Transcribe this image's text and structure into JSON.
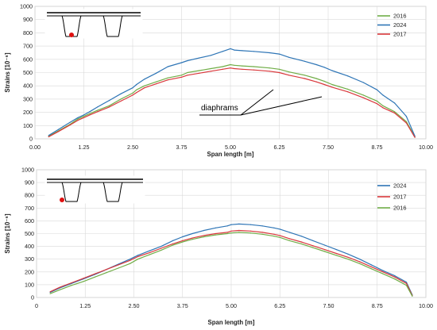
{
  "chart_data": [
    {
      "type": "line",
      "xlabel": "Span length [m]",
      "ylabel": "Strains [10⁻⁶]",
      "xlim": [
        0,
        10
      ],
      "ylim": [
        0,
        1000
      ],
      "xticks": [
        "0.00",
        "1.25",
        "2.50",
        "3.75",
        "5.00",
        "6.25",
        "7.50",
        "8.75",
        "10.00"
      ],
      "yticks": [
        "0",
        "100",
        "200",
        "300",
        "400",
        "500",
        "600",
        "700",
        "800",
        "900",
        "1000"
      ],
      "grid": true,
      "legend_position": "top-right",
      "legend_order": [
        "2016",
        "2024",
        "2017"
      ],
      "annotation": "diaphrams",
      "inset": "cross-section-sketch-with-red-sensor-point",
      "series": [
        {
          "name": "2016",
          "color": "#70ad47",
          "x": [
            0.35,
            0.6,
            0.9,
            1.1,
            1.25,
            1.4,
            1.6,
            1.9,
            2.2,
            2.5,
            2.6,
            2.8,
            3.1,
            3.4,
            3.75,
            3.9,
            4.2,
            4.5,
            4.8,
            5.0,
            5.1,
            5.3,
            5.6,
            6.0,
            6.25,
            6.5,
            6.9,
            7.2,
            7.4,
            7.6,
            8.0,
            8.4,
            8.75,
            8.9,
            9.2,
            9.5,
            9.72
          ],
          "y": [
            20,
            60,
            110,
            150,
            170,
            190,
            215,
            250,
            300,
            345,
            370,
            400,
            430,
            460,
            480,
            500,
            515,
            530,
            545,
            560,
            555,
            550,
            545,
            535,
            525,
            505,
            480,
            455,
            435,
            410,
            375,
            330,
            285,
            250,
            205,
            130,
            15
          ]
        },
        {
          "name": "2024",
          "color": "#2e75b6",
          "x": [
            0.35,
            0.6,
            0.9,
            1.1,
            1.25,
            1.4,
            1.6,
            1.9,
            2.2,
            2.5,
            2.6,
            2.8,
            3.1,
            3.4,
            3.75,
            3.9,
            4.2,
            4.5,
            4.8,
            5.0,
            5.1,
            5.3,
            5.6,
            6.0,
            6.25,
            6.5,
            6.9,
            7.2,
            7.4,
            7.6,
            8.0,
            8.4,
            8.75,
            8.9,
            9.2,
            9.5,
            9.72
          ],
          "y": [
            25,
            70,
            125,
            160,
            180,
            205,
            240,
            290,
            340,
            385,
            410,
            450,
            495,
            545,
            575,
            590,
            610,
            630,
            660,
            680,
            670,
            665,
            660,
            650,
            640,
            615,
            585,
            560,
            540,
            515,
            475,
            425,
            370,
            330,
            270,
            170,
            20
          ]
        },
        {
          "name": "2017",
          "color": "#d9373b",
          "x": [
            0.35,
            0.6,
            0.9,
            1.1,
            1.25,
            1.4,
            1.6,
            1.9,
            2.2,
            2.5,
            2.6,
            2.8,
            3.1,
            3.4,
            3.75,
            3.9,
            4.2,
            4.5,
            4.8,
            5.0,
            5.1,
            5.3,
            5.6,
            6.0,
            6.25,
            6.5,
            6.9,
            7.2,
            7.4,
            7.6,
            8.0,
            8.4,
            8.75,
            8.9,
            9.2,
            9.5,
            9.72
          ],
          "y": [
            15,
            55,
            105,
            140,
            160,
            180,
            205,
            240,
            285,
            330,
            350,
            385,
            415,
            445,
            465,
            480,
            495,
            510,
            525,
            535,
            530,
            525,
            520,
            510,
            500,
            480,
            455,
            430,
            410,
            390,
            355,
            310,
            265,
            235,
            195,
            120,
            10
          ]
        }
      ]
    },
    {
      "type": "line",
      "xlabel": "Span length [m]",
      "ylabel": "Strains [10⁻⁶]",
      "xlim": [
        0,
        10
      ],
      "ylim": [
        0,
        1000
      ],
      "xticks": [
        "0",
        "1.25",
        "2.50",
        "3.75",
        "5.00",
        "6.25",
        "7.50",
        "8.75",
        "10.00"
      ],
      "yticks": [
        "0",
        "100",
        "200",
        "300",
        "400",
        "500",
        "600",
        "700",
        "800",
        "900",
        "1000"
      ],
      "grid": true,
      "legend_position": "top-right",
      "legend_order": [
        "2024",
        "2017",
        "2016"
      ],
      "inset": "cross-section-sketch-with-red-sensor-point",
      "series": [
        {
          "name": "2024",
          "color": "#2e75b6",
          "x": [
            0.35,
            0.6,
            0.9,
            1.2,
            1.5,
            1.8,
            2.1,
            2.4,
            2.6,
            2.9,
            3.2,
            3.5,
            3.75,
            4.0,
            4.3,
            4.6,
            4.9,
            5.0,
            5.2,
            5.5,
            5.8,
            6.1,
            6.25,
            6.5,
            6.8,
            7.1,
            7.4,
            7.7,
            8.0,
            8.3,
            8.6,
            8.9,
            9.2,
            9.5,
            9.65
          ],
          "y": [
            40,
            75,
            110,
            145,
            180,
            220,
            260,
            300,
            330,
            365,
            400,
            445,
            475,
            500,
            525,
            545,
            560,
            570,
            575,
            570,
            560,
            545,
            535,
            510,
            480,
            445,
            410,
            375,
            340,
            300,
            255,
            210,
            170,
            120,
            20
          ]
        },
        {
          "name": "2017",
          "color": "#d9373b",
          "x": [
            0.35,
            0.6,
            0.9,
            1.2,
            1.5,
            1.8,
            2.1,
            2.4,
            2.6,
            2.9,
            3.2,
            3.5,
            3.75,
            4.0,
            4.3,
            4.6,
            4.9,
            5.0,
            5.2,
            5.5,
            5.8,
            6.1,
            6.25,
            6.5,
            6.8,
            7.1,
            7.4,
            7.7,
            8.0,
            8.3,
            8.6,
            8.9,
            9.2,
            9.5,
            9.65
          ],
          "y": [
            45,
            80,
            115,
            150,
            185,
            220,
            255,
            290,
            320,
            350,
            385,
            420,
            445,
            465,
            485,
            500,
            510,
            520,
            525,
            520,
            510,
            495,
            485,
            460,
            435,
            405,
            375,
            345,
            315,
            280,
            240,
            200,
            160,
            110,
            15
          ]
        },
        {
          "name": "2016",
          "color": "#70ad47",
          "x": [
            0.35,
            0.6,
            0.9,
            1.2,
            1.5,
            1.8,
            2.1,
            2.4,
            2.6,
            2.9,
            3.2,
            3.5,
            3.75,
            4.0,
            4.3,
            4.6,
            4.9,
            5.0,
            5.2,
            5.5,
            5.8,
            6.1,
            6.25,
            6.5,
            6.8,
            7.1,
            7.4,
            7.7,
            8.0,
            8.3,
            8.6,
            8.9,
            9.2,
            9.5,
            9.65
          ],
          "y": [
            30,
            60,
            95,
            125,
            160,
            195,
            230,
            265,
            300,
            335,
            370,
            410,
            435,
            455,
            475,
            490,
            500,
            505,
            510,
            505,
            495,
            480,
            470,
            445,
            420,
            390,
            360,
            330,
            300,
            265,
            225,
            185,
            145,
            95,
            10
          ]
        }
      ]
    }
  ]
}
